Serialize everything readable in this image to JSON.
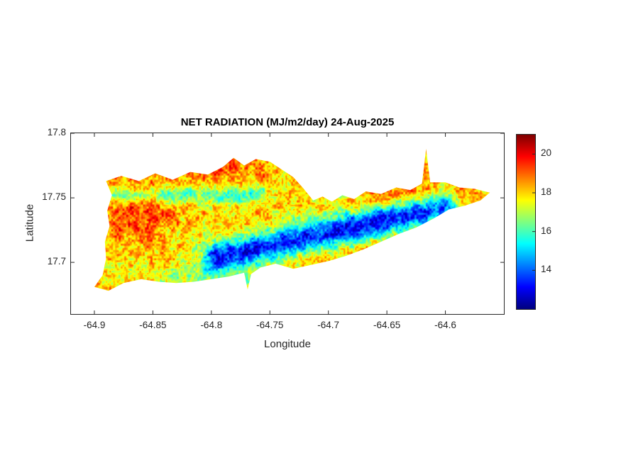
{
  "figure": {
    "background": "#ffffff"
  },
  "chart_data": {
    "type": "heatmap",
    "title": "NET RADIATION (MJ/m2/day) 24-Aug-2025",
    "xlabel": "Longitude",
    "ylabel": "Latitude",
    "units": "MJ/m2/day",
    "xlim": [
      -64.92,
      -64.55
    ],
    "ylim": [
      17.66,
      17.8
    ],
    "xticks": [
      -64.9,
      -64.85,
      -64.8,
      -64.75,
      -64.7,
      -64.65,
      -64.6
    ],
    "xtick_labels": [
      "-64.9",
      "-64.85",
      "-64.8",
      "-64.75",
      "-64.7",
      "-64.65",
      "-64.6"
    ],
    "yticks": [
      17.7,
      17.75,
      17.8
    ],
    "ytick_labels": [
      "17.7",
      "17.75",
      "17.8"
    ],
    "colormap": "jet",
    "clim": [
      12,
      21
    ],
    "colorbar_ticks": [
      14,
      16,
      18,
      20
    ],
    "colorbar_tick_labels": [
      "14",
      "16",
      "18",
      "20"
    ],
    "grid": false,
    "axis_color": "#262626",
    "text_color": "#000000",
    "island_outline": [
      [
        -64.9,
        17.681
      ],
      [
        -64.893,
        17.69
      ],
      [
        -64.89,
        17.703
      ],
      [
        -64.891,
        17.716
      ],
      [
        -64.887,
        17.728
      ],
      [
        -64.889,
        17.74
      ],
      [
        -64.885,
        17.752
      ],
      [
        -64.89,
        17.763
      ],
      [
        -64.877,
        17.767
      ],
      [
        -64.862,
        17.763
      ],
      [
        -64.848,
        17.769
      ],
      [
        -64.833,
        17.764
      ],
      [
        -64.818,
        17.77
      ],
      [
        -64.803,
        17.768
      ],
      [
        -64.79,
        17.774
      ],
      [
        -64.781,
        17.781
      ],
      [
        -64.772,
        17.775
      ],
      [
        -64.762,
        17.78
      ],
      [
        -64.75,
        17.778
      ],
      [
        -64.74,
        17.772
      ],
      [
        -64.73,
        17.766
      ],
      [
        -64.722,
        17.758
      ],
      [
        -64.713,
        17.748
      ],
      [
        -64.705,
        17.751
      ],
      [
        -64.697,
        17.747
      ],
      [
        -64.688,
        17.752
      ],
      [
        -64.678,
        17.749
      ],
      [
        -64.668,
        17.755
      ],
      [
        -64.655,
        17.753
      ],
      [
        -64.642,
        17.758
      ],
      [
        -64.63,
        17.756
      ],
      [
        -64.62,
        17.761
      ],
      [
        -64.6165,
        17.788
      ],
      [
        -64.613,
        17.762
      ],
      [
        -64.6,
        17.762
      ],
      [
        -64.588,
        17.758
      ],
      [
        -64.575,
        17.757
      ],
      [
        -64.562,
        17.754
      ],
      [
        -64.57,
        17.748
      ],
      [
        -64.583,
        17.744
      ],
      [
        -64.597,
        17.741
      ],
      [
        -64.61,
        17.734
      ],
      [
        -64.625,
        17.727
      ],
      [
        -64.64,
        17.722
      ],
      [
        -64.655,
        17.716
      ],
      [
        -64.67,
        17.71
      ],
      [
        -64.685,
        17.705
      ],
      [
        -64.7,
        17.701
      ],
      [
        -64.715,
        17.698
      ],
      [
        -64.73,
        17.695
      ],
      [
        -64.745,
        17.699
      ],
      [
        -64.758,
        17.696
      ],
      [
        -64.766,
        17.691
      ],
      [
        -64.769,
        17.679
      ],
      [
        -64.772,
        17.692
      ],
      [
        -64.785,
        17.689
      ],
      [
        -64.8,
        17.687
      ],
      [
        -64.815,
        17.685
      ],
      [
        -64.83,
        17.684
      ],
      [
        -64.845,
        17.685
      ],
      [
        -64.86,
        17.687
      ],
      [
        -64.875,
        17.684
      ],
      [
        -64.888,
        17.678
      ],
      [
        -64.9,
        17.681
      ]
    ],
    "field_model": {
      "base": 17.9,
      "clamp": [
        12.3,
        20.9
      ],
      "noise": [
        {
          "scale": 0.0016,
          "amp": 0.95,
          "ox": 0.0,
          "oy": 0.0
        },
        {
          "scale": 0.0045,
          "amp": 0.8,
          "ox": 7.3,
          "oy": 3.1
        }
      ],
      "features": [
        {
          "type": "blob",
          "lon": -64.865,
          "lat": 17.742,
          "sx": 0.035,
          "sy": 0.028,
          "amp": 1.5
        },
        {
          "type": "blob",
          "lon": -64.79,
          "lat": 17.772,
          "sx": 0.05,
          "sy": 0.014,
          "amp": 1.1
        },
        {
          "type": "blob",
          "lon": -64.63,
          "lat": 17.753,
          "sx": 0.045,
          "sy": 0.013,
          "amp": 1.2
        },
        {
          "type": "band",
          "a": [
            -64.795,
            17.704
          ],
          "b": [
            -64.602,
            17.743
          ],
          "w": 0.0115,
          "amp": -4.6
        },
        {
          "type": "band",
          "a": [
            -64.885,
            17.752
          ],
          "b": [
            -64.757,
            17.753
          ],
          "w": 0.0065,
          "amp": -2.1
        },
        {
          "type": "blob",
          "lon": -64.8,
          "lat": 17.688,
          "sx": 0.055,
          "sy": 0.013,
          "amp": -1.2
        },
        {
          "type": "blob",
          "lon": -64.695,
          "lat": 17.758,
          "sx": 0.02,
          "sy": 0.01,
          "amp": -0.9
        }
      ]
    }
  }
}
